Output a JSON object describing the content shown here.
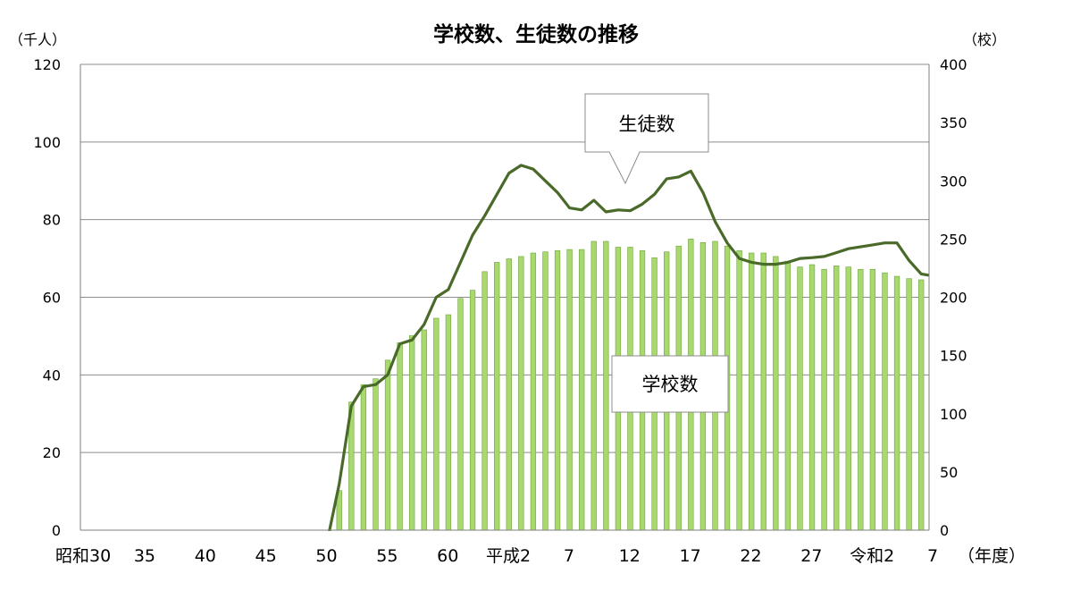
{
  "chart_data": {
    "type": "bar+line",
    "title": "学校数、生徒数の推移",
    "left_axis": {
      "unit_label": "（千人）",
      "ylim": [
        0,
        120
      ],
      "ticks": [
        0,
        20,
        40,
        60,
        80,
        100,
        120
      ],
      "tick_labels": [
        "0",
        "20",
        "40",
        "60",
        "80",
        "100",
        "120"
      ]
    },
    "right_axis": {
      "unit_label": "（校）",
      "ylim": [
        0,
        400
      ],
      "ticks": [
        0,
        50,
        100,
        150,
        200,
        250,
        300,
        350,
        400
      ],
      "tick_labels": [
        "0",
        "50",
        "100",
        "150",
        "200",
        "250",
        "300",
        "350",
        "400"
      ]
    },
    "x_axis": {
      "unit_label": "（年度）",
      "tick_labels": [
        {
          "index": 0,
          "label": "昭和30"
        },
        {
          "index": 5,
          "label": "35"
        },
        {
          "index": 10,
          "label": "40"
        },
        {
          "index": 15,
          "label": "45"
        },
        {
          "index": 20,
          "label": "50"
        },
        {
          "index": 25,
          "label": "55"
        },
        {
          "index": 30,
          "label": "60"
        },
        {
          "index": 35,
          "label": "平成2"
        },
        {
          "index": 40,
          "label": "7"
        },
        {
          "index": 45,
          "label": "12"
        },
        {
          "index": 50,
          "label": "17"
        },
        {
          "index": 55,
          "label": "22"
        },
        {
          "index": 60,
          "label": "27"
        },
        {
          "index": 65,
          "label": "令和2"
        },
        {
          "index": 70,
          "label": "7"
        }
      ]
    },
    "x_start": 0,
    "x_count": 71,
    "series": [
      {
        "name": "学校数",
        "kind": "bar",
        "axis": "right",
        "color": "#a9d96e",
        "border_color": "#6aa53a",
        "start_index": 21,
        "values": [
          34,
          110,
          125,
          130,
          146,
          161,
          167,
          172,
          182,
          185,
          199,
          206,
          222,
          230,
          233,
          235,
          238,
          239,
          240,
          241,
          241,
          248,
          248,
          243,
          243,
          240,
          234,
          239,
          244,
          250,
          247,
          248,
          244,
          240,
          238,
          238,
          235,
          231,
          226,
          228,
          224,
          227,
          226,
          224,
          224,
          221,
          218,
          216,
          215
        ]
      },
      {
        "name": "生徒数",
        "kind": "line",
        "axis": "left",
        "color": "#4a6a2a",
        "start_index": 20,
        "values": [
          -3,
          12,
          32,
          37,
          37.5,
          40,
          48,
          49,
          53,
          60,
          62,
          69,
          76,
          81,
          86.5,
          92,
          94,
          93,
          90,
          87,
          83,
          82.5,
          85,
          82,
          82.5,
          82.3,
          84,
          86.5,
          90.5,
          91,
          92.5,
          87,
          79.5,
          74,
          70,
          69,
          68.5,
          68.5,
          69,
          70,
          70.2,
          70.5,
          71.5,
          72.5,
          73,
          73.5,
          74,
          74,
          69.5,
          66,
          65.5,
          66
        ]
      }
    ],
    "callouts": [
      {
        "text": "生徒数",
        "target_series": "生徒数"
      },
      {
        "text": "学校数",
        "target_series": "学校数"
      }
    ],
    "grid": {
      "horizontal": true
    }
  }
}
